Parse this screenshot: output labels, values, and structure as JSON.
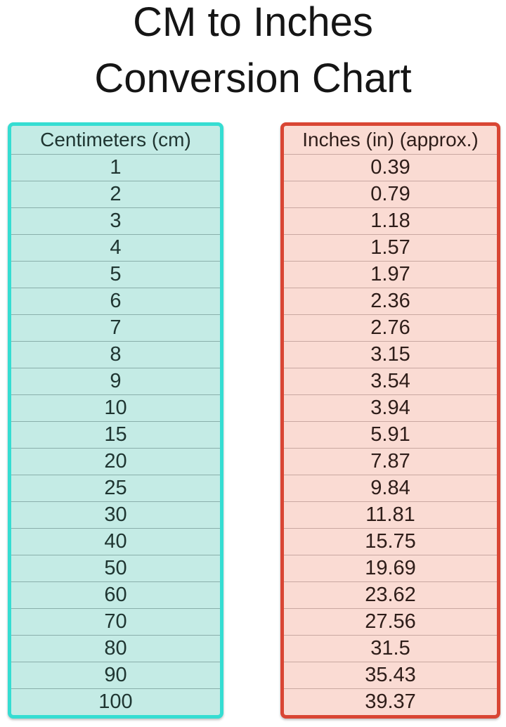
{
  "title": {
    "line1": "CM to Inches",
    "line2": "Conversion Chart"
  },
  "tables": [
    {
      "name": "centimeters",
      "header": "Centimeters (cm)",
      "values": [
        "1",
        "2",
        "3",
        "4",
        "5",
        "6",
        "7",
        "8",
        "9",
        "10",
        "15",
        "20",
        "25",
        "30",
        "40",
        "50",
        "60",
        "70",
        "80",
        "90",
        "100"
      ],
      "colors": {
        "border": "#35ddd2",
        "background": "#c4ebe5",
        "divider": "#8aafab",
        "text": "#1f3531"
      }
    },
    {
      "name": "inches",
      "header": "Inches (in) (approx.)",
      "values": [
        "0.39",
        "0.79",
        "1.18",
        "1.57",
        "1.97",
        "2.36",
        "2.76",
        "3.15",
        "3.54",
        "3.94",
        "5.91",
        "7.87",
        "9.84",
        "11.81",
        "15.75",
        "19.69",
        "23.62",
        "27.56",
        "31.5",
        "35.43",
        "39.37"
      ],
      "colors": {
        "border": "#d94634",
        "background": "#fadbd3",
        "divider": "#c9a8a1",
        "text": "#2e1d19"
      }
    }
  ],
  "chart_data": {
    "type": "table",
    "title": "CM to Inches Conversion Chart",
    "columns": [
      "Centimeters (cm)",
      "Inches (in) (approx.)"
    ],
    "rows": [
      [
        1,
        0.39
      ],
      [
        2,
        0.79
      ],
      [
        3,
        1.18
      ],
      [
        4,
        1.57
      ],
      [
        5,
        1.97
      ],
      [
        6,
        2.36
      ],
      [
        7,
        2.76
      ],
      [
        8,
        3.15
      ],
      [
        9,
        3.54
      ],
      [
        10,
        3.94
      ],
      [
        15,
        5.91
      ],
      [
        20,
        7.87
      ],
      [
        25,
        9.84
      ],
      [
        30,
        11.81
      ],
      [
        40,
        15.75
      ],
      [
        50,
        19.69
      ],
      [
        60,
        23.62
      ],
      [
        70,
        27.56
      ],
      [
        80,
        31.5
      ],
      [
        90,
        35.43
      ],
      [
        100,
        39.37
      ]
    ]
  }
}
